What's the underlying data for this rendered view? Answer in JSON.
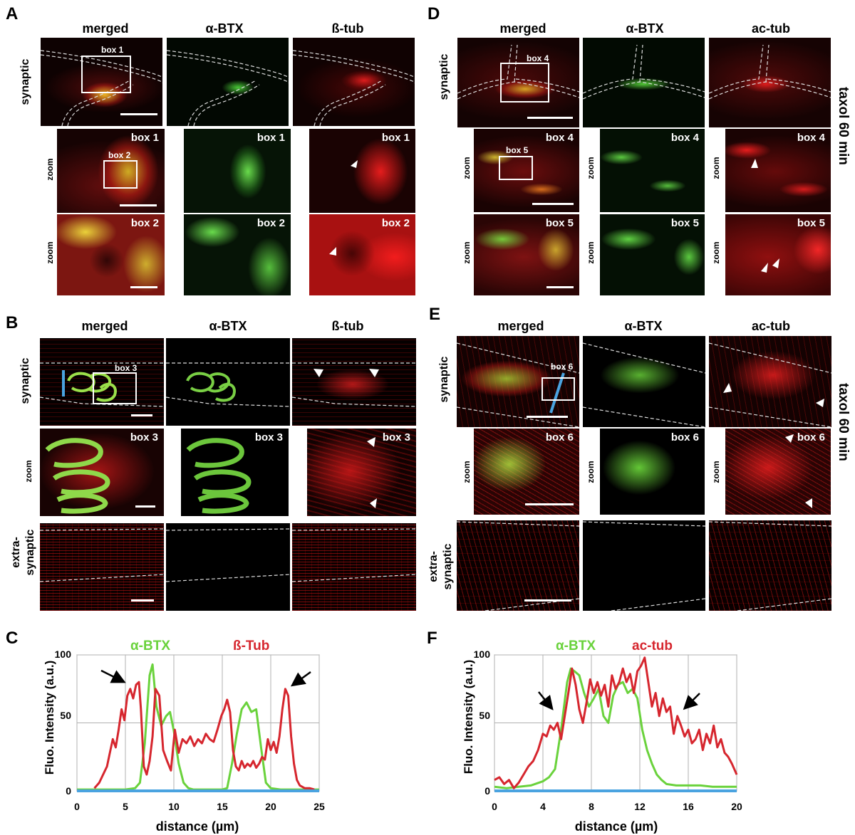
{
  "panels": {
    "A": {
      "letter": "A",
      "columns": [
        "merged",
        "α-BTX",
        "ß-tub"
      ],
      "rows": [
        "synaptic",
        "zoom",
        "zoom"
      ],
      "boxes": [
        "box 1",
        "box 2"
      ]
    },
    "B": {
      "letter": "B",
      "columns": [
        "merged",
        "α-BTX",
        "ß-tub"
      ],
      "rows": [
        "synaptic",
        "zoom",
        "extra-",
        "synaptic"
      ],
      "boxes": [
        "box 3"
      ]
    },
    "C": {
      "letter": "C"
    },
    "D": {
      "letter": "D",
      "columns": [
        "merged",
        "α-BTX",
        "ac-tub"
      ],
      "rows": [
        "synaptic",
        "zoom",
        "zoom"
      ],
      "boxes": [
        "box 4",
        "box 5"
      ],
      "side": "taxol 60 min"
    },
    "E": {
      "letter": "E",
      "columns": [
        "merged",
        "α-BTX",
        "ac-tub"
      ],
      "rows": [
        "synaptic",
        "zoom",
        "extra-",
        "synaptic"
      ],
      "boxes": [
        "box 6"
      ],
      "side": "taxol 60 min"
    },
    "F": {
      "letter": "F"
    }
  },
  "colors": {
    "green": "#6ad23c",
    "red": "#d6262e",
    "blue": "#4aa3e0",
    "grid": "#b0b0b0"
  },
  "chart_data": [
    {
      "type": "line",
      "panel": "C",
      "ylabel": "Fluo. Intensity (a.u.)",
      "xlabel": "distance (µm)",
      "xlim": [
        0,
        25
      ],
      "ylim": [
        0,
        100
      ],
      "xticks": [
        0,
        5,
        10,
        15,
        20,
        25
      ],
      "yticks": [
        0,
        50,
        100
      ],
      "grid": true,
      "legend": "top",
      "series": [
        {
          "name": "α-BTX",
          "color": "#6ad23c",
          "x": [
            0,
            1,
            2,
            3,
            4,
            5,
            6,
            6.5,
            7,
            7.5,
            7.8,
            8.2,
            8.7,
            9.2,
            9.6,
            10,
            10.5,
            11,
            11.5,
            12,
            13,
            14,
            15,
            15.5,
            16,
            16.5,
            17,
            17.5,
            18,
            18.5,
            19,
            19.5,
            20,
            21,
            22,
            23,
            24,
            25
          ],
          "y": [
            1,
            1,
            1,
            1,
            1,
            1,
            2,
            6,
            35,
            85,
            93,
            62,
            48,
            55,
            58,
            44,
            20,
            6,
            2,
            1,
            1,
            1,
            1,
            2,
            20,
            42,
            60,
            65,
            58,
            60,
            32,
            6,
            2,
            1,
            1,
            1,
            1,
            1
          ]
        },
        {
          "name": "ß-Tub",
          "color": "#d6262e",
          "x": [
            1.8,
            2.3,
            2.7,
            3.1,
            3.4,
            3.7,
            4.0,
            4.3,
            4.6,
            4.9,
            5.2,
            5.5,
            5.8,
            6.1,
            6.4,
            6.6,
            6.9,
            7.2,
            7.5,
            7.8,
            8.1,
            8.5,
            8.9,
            9.3,
            9.7,
            10.1,
            10.5,
            10.9,
            11.3,
            11.7,
            12.1,
            12.5,
            12.9,
            13.3,
            13.7,
            14.1,
            14.5,
            14.9,
            15.2,
            15.5,
            15.8,
            16.1,
            16.4,
            16.7,
            17.0,
            17.3,
            17.6,
            17.9,
            18.2,
            18.5,
            18.8,
            19.1,
            19.4,
            19.7,
            20.0,
            20.3,
            20.6,
            20.9,
            21.2,
            21.5,
            21.8,
            22.1,
            22.4,
            22.7,
            23.0,
            23.5,
            24.0,
            24.5
          ],
          "y": [
            2,
            6,
            12,
            18,
            28,
            38,
            32,
            45,
            60,
            52,
            70,
            75,
            68,
            78,
            80,
            60,
            18,
            12,
            22,
            40,
            75,
            70,
            30,
            22,
            15,
            45,
            28,
            38,
            35,
            40,
            33,
            38,
            35,
            42,
            38,
            36,
            45,
            55,
            60,
            67,
            58,
            30,
            18,
            15,
            22,
            17,
            20,
            18,
            22,
            17,
            20,
            25,
            23,
            38,
            30,
            36,
            28,
            40,
            60,
            75,
            70,
            40,
            20,
            8,
            4,
            2,
            2,
            1
          ]
        },
        {
          "name": "",
          "color": "#4aa3e0",
          "x": [
            0,
            25
          ],
          "y": [
            0,
            0
          ]
        }
      ]
    },
    {
      "type": "line",
      "panel": "F",
      "ylabel": "Fluo. Intensity (a.u.)",
      "xlabel": "distance (µm)",
      "xlim": [
        0,
        20
      ],
      "ylim": [
        0,
        100
      ],
      "xticks": [
        0,
        4,
        8,
        12,
        16,
        20
      ],
      "yticks": [
        0,
        50,
        100
      ],
      "grid": true,
      "legend": "top",
      "series": [
        {
          "name": "α-BTX",
          "color": "#6ad23c",
          "x": [
            0,
            1,
            2,
            3,
            4,
            4.5,
            5,
            5.5,
            6,
            6.3,
            6.6,
            7,
            7.4,
            7.8,
            8.2,
            8.6,
            9,
            9.4,
            9.8,
            10.2,
            10.6,
            11,
            11.4,
            11.8,
            12.2,
            12.6,
            13,
            13.4,
            13.8,
            14.2,
            15,
            16,
            17,
            18,
            19,
            20
          ],
          "y": [
            3,
            2,
            3,
            4,
            7,
            10,
            16,
            45,
            80,
            90,
            88,
            85,
            72,
            62,
            68,
            75,
            55,
            50,
            70,
            78,
            80,
            72,
            75,
            68,
            45,
            30,
            20,
            12,
            8,
            5,
            4,
            4,
            4,
            3,
            3,
            3
          ]
        },
        {
          "name": "ac-tub",
          "color": "#d6262e",
          "x": [
            0,
            0.4,
            0.8,
            1.2,
            1.6,
            2.0,
            2.4,
            2.8,
            3.2,
            3.6,
            4.0,
            4.3,
            4.6,
            4.9,
            5.2,
            5.5,
            5.8,
            6.1,
            6.4,
            6.7,
            7.0,
            7.3,
            7.6,
            7.9,
            8.2,
            8.5,
            8.8,
            9.1,
            9.4,
            9.7,
            10.0,
            10.3,
            10.6,
            10.9,
            11.2,
            11.5,
            11.8,
            12.1,
            12.4,
            12.7,
            13.0,
            13.3,
            13.6,
            13.9,
            14.2,
            14.5,
            14.8,
            15.1,
            15.4,
            15.7,
            16.0,
            16.3,
            16.6,
            16.9,
            17.2,
            17.5,
            17.8,
            18.1,
            18.4,
            18.7,
            19.0,
            19.3,
            19.6,
            20.0
          ],
          "y": [
            8,
            10,
            5,
            8,
            2,
            6,
            12,
            18,
            22,
            30,
            42,
            40,
            48,
            45,
            50,
            38,
            55,
            72,
            90,
            78,
            60,
            50,
            65,
            82,
            72,
            80,
            70,
            78,
            62,
            85,
            75,
            80,
            90,
            80,
            86,
            72,
            88,
            92,
            98,
            80,
            62,
            72,
            55,
            68,
            58,
            62,
            42,
            55,
            48,
            40,
            45,
            35,
            38,
            45,
            30,
            42,
            35,
            48,
            32,
            38,
            28,
            25,
            20,
            12
          ]
        },
        {
          "name": "",
          "color": "#4aa3e0",
          "x": [
            0,
            20
          ],
          "y": [
            0,
            0
          ]
        }
      ],
      "arrows": [
        {
          "x": 4.3,
          "y": 52
        },
        {
          "x": 16.6,
          "y": 48
        }
      ]
    }
  ],
  "chartC": {
    "ylabel": "Fluo. Intensity (a.u.)",
    "xlabel": "distance (µm)",
    "legend_green": "α-BTX",
    "legend_red": "ß-Tub",
    "xticks": [
      "0",
      "5",
      "10",
      "15",
      "20",
      "25"
    ],
    "yticks": [
      "0",
      "50",
      "100"
    ]
  },
  "chartF": {
    "ylabel": "Fluo. Intensity (a.u.)",
    "xlabel": "distance (µm)",
    "legend_green": "α-BTX",
    "legend_red": "ac-tub",
    "xticks": [
      "0",
      "4",
      "8",
      "12",
      "16",
      "20"
    ],
    "yticks": [
      "0",
      "50",
      "100"
    ]
  }
}
